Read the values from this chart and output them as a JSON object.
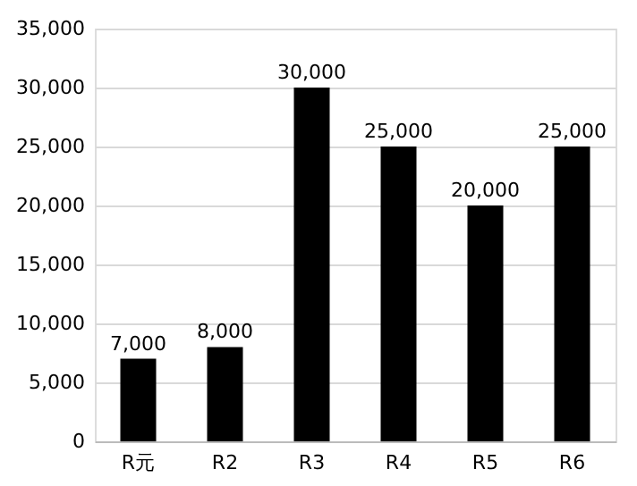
{
  "chart_data": {
    "type": "bar",
    "categories": [
      "R元",
      "R2",
      "R3",
      "R4",
      "R5",
      "R6"
    ],
    "values": [
      7000,
      8000,
      30000,
      25000,
      20000,
      25000
    ],
    "value_labels": [
      "7,000",
      "8,000",
      "30,000",
      "25,000",
      "20,000",
      "25,000"
    ],
    "color": "#000000",
    "ylim": [
      0,
      35000
    ],
    "yticks": [
      0,
      {
        "value": 5000,
        "label": "5,000"
      },
      {
        "value": 10000,
        "label": "10,000"
      },
      {
        "value": 15000,
        "label": "15,000"
      },
      {
        "value": 20000,
        "label": "20,000"
      },
      {
        "value": 25000,
        "label": "25,000"
      },
      {
        "value": 30000,
        "label": "30,000"
      },
      {
        "value": 35000,
        "label": "35,000"
      }
    ],
    "grid": "y"
  }
}
